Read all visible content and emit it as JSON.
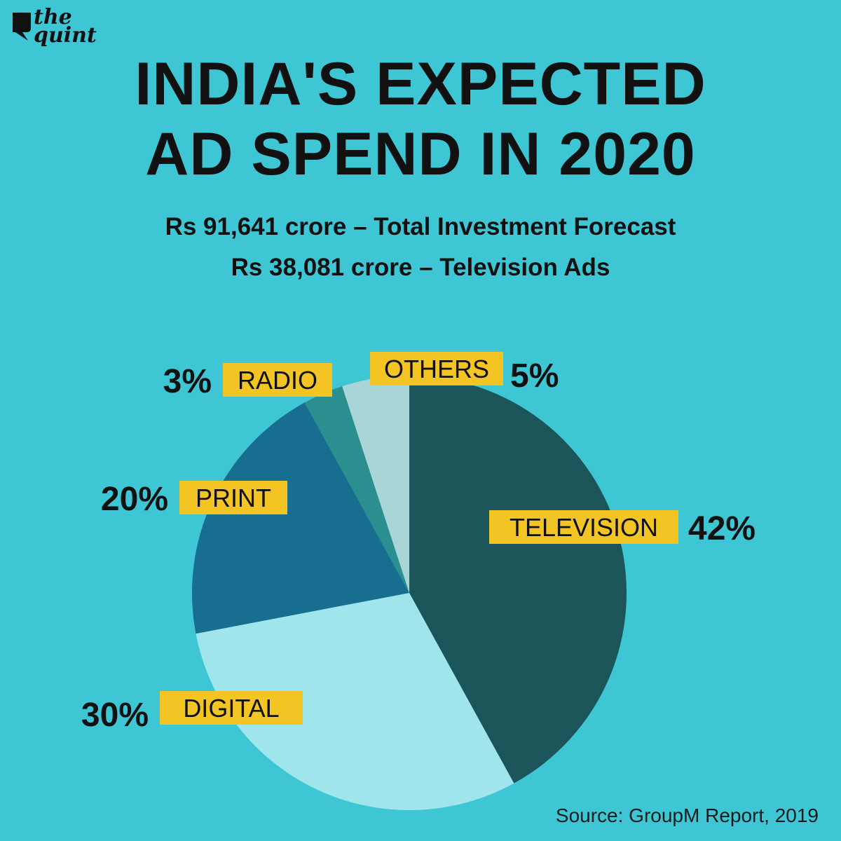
{
  "brand": {
    "logo_text": "the\nquint"
  },
  "header": {
    "title": "INDIA'S EXPECTED AD SPEND IN 2020",
    "subtitle_total": "Rs 91,641 crore – Total Investment Forecast",
    "subtitle_tv": "Rs 38,081 crore – Television Ads"
  },
  "footer": {
    "source": "Source: GroupM Report, 2019"
  },
  "colors": {
    "background": "#3ec6d4",
    "label_bg": "#f2c524",
    "television": "#1b5559",
    "digital": "#9fe5eb",
    "print": "#176e8f",
    "radio": "#2b8e8f",
    "others": "#a9d5d6"
  },
  "chart_data": {
    "type": "pie",
    "title": "INDIA'S EXPECTED AD SPEND IN 2020",
    "unit": "%",
    "slices": [
      {
        "key": "television",
        "label": "TELEVISION",
        "value": 42,
        "value_label": "42%",
        "color": "#1b5559"
      },
      {
        "key": "digital",
        "label": "DIGITAL",
        "value": 30,
        "value_label": "30%",
        "color": "#9fe5eb"
      },
      {
        "key": "print",
        "label": "PRINT",
        "value": 20,
        "value_label": "20%",
        "color": "#176e8f"
      },
      {
        "key": "radio",
        "label": "RADIO",
        "value": 3,
        "value_label": "3%",
        "color": "#2b8e8f"
      },
      {
        "key": "others",
        "label": "OTHERS",
        "value": 5,
        "value_label": "5%",
        "color": "#a9d5d6"
      }
    ],
    "start": "12 o'clock",
    "direction": "clockwise"
  }
}
